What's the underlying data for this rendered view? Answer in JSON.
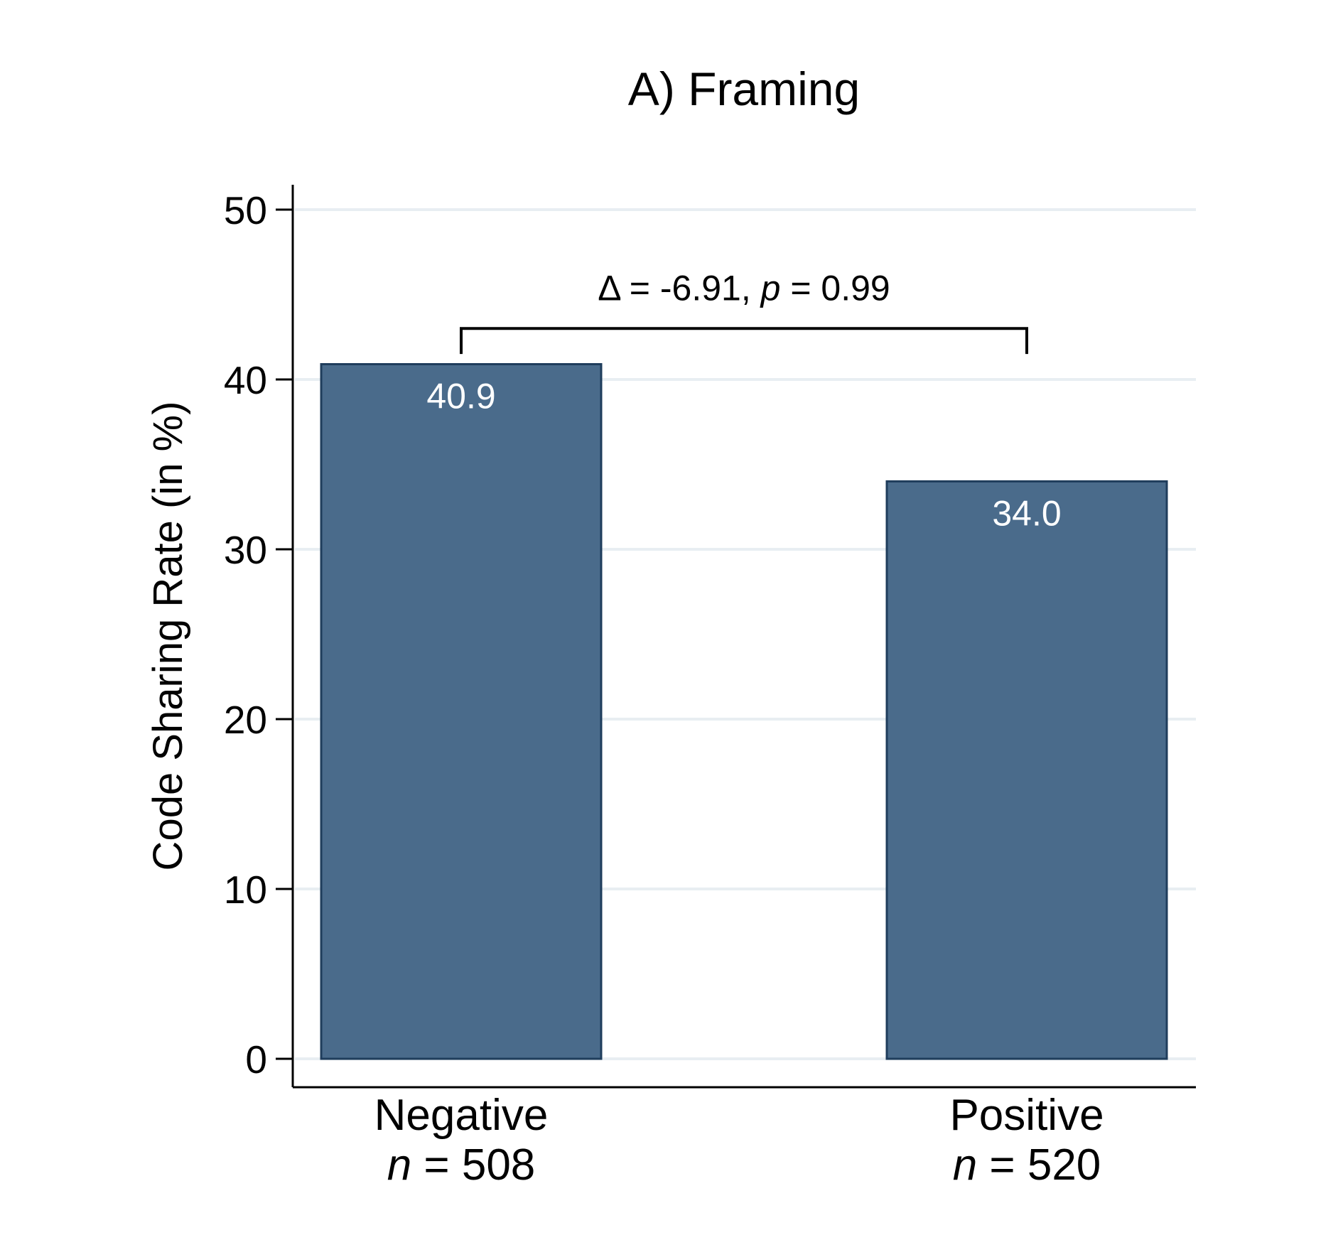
{
  "chart_data": {
    "type": "bar",
    "title": "A) Framing",
    "ylabel": "Code Sharing Rate (in %)",
    "ylim": [
      0,
      50
    ],
    "yticks": [
      0,
      10,
      20,
      30,
      40,
      50
    ],
    "grid": true,
    "categories": [
      "Negative",
      "Positive"
    ],
    "category_sublabels": [
      {
        "italic": "n",
        "rest": " = 508"
      },
      {
        "italic": "n",
        "rest": " = 520"
      }
    ],
    "values": [
      40.9,
      34.0
    ],
    "value_labels": [
      "40.9",
      "34.0"
    ],
    "annotation": {
      "before": "Δ = -6.91, ",
      "italic": "p",
      "after": " = 0.99",
      "bracket_top": 43,
      "bracket_bottom": 41.5
    },
    "colors": {
      "bar_fill": "#4a6b8b",
      "bar_edge": "#1f3d5c",
      "grid": "#e8eef2",
      "axis": "#000000",
      "value_label": "#ffffff"
    }
  }
}
